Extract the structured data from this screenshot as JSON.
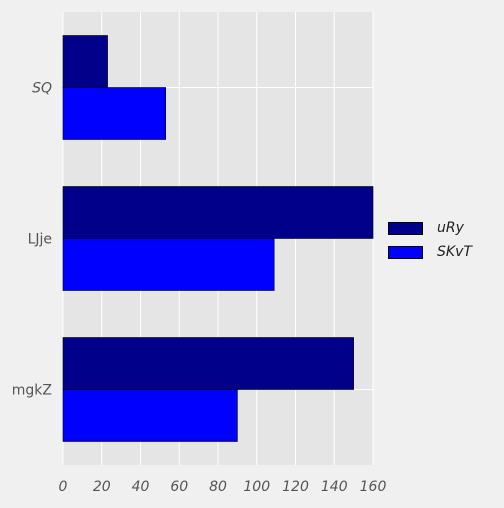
{
  "chart_data": {
    "type": "bar",
    "orientation": "horizontal",
    "categories": [
      "SQ",
      "LJje",
      "mgkZ"
    ],
    "category_label_style": [
      "italic",
      "normal",
      "normal"
    ],
    "series": [
      {
        "name": "uRy",
        "values": [
          23,
          160,
          150
        ],
        "color": "#00008b"
      },
      {
        "name": "SKvT",
        "values": [
          53,
          109,
          90
        ],
        "color": "#0000ff"
      }
    ],
    "xlim": [
      0,
      160
    ],
    "xticks": [
      "0",
      "20",
      "40",
      "60",
      "80",
      "100",
      "120",
      "140",
      "160"
    ],
    "title": "",
    "xlabel": "",
    "ylabel": "",
    "grid": true,
    "legend_position": "right",
    "background_color": "#e5e5e5",
    "figure_color": "#f0f0f0"
  }
}
